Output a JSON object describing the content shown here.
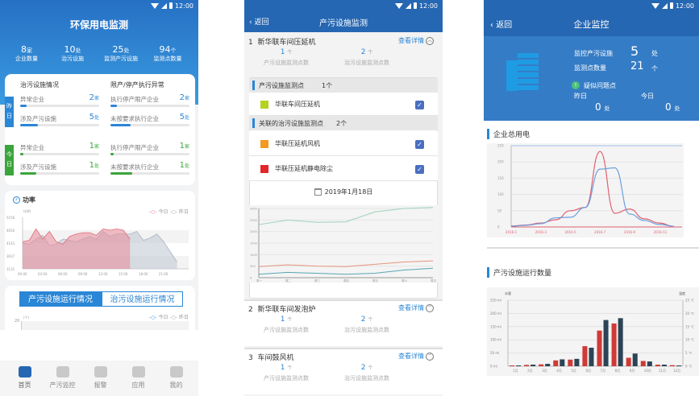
{
  "colors": {
    "primary": "#2a86d6",
    "header": "#2567b3",
    "green": "#3aa53a",
    "today": "#e06a7b",
    "yesterday": "#aab4c2"
  },
  "status_bar": {
    "time": "12:00"
  },
  "home": {
    "title": "环保用电监测",
    "stats": [
      {
        "value": "8",
        "unit": "家",
        "label": "企业数量"
      },
      {
        "value": "10",
        "unit": "处",
        "label": "治污设施"
      },
      {
        "value": "25",
        "unit": "处",
        "label": "监测产污设施"
      },
      {
        "value": "94",
        "unit": "个",
        "label": "监测点数量"
      }
    ],
    "left_header": "治污设施情况",
    "right_header": "限产/停产执行异常",
    "yesterday_label": "昨日",
    "today_label": "今日",
    "yesterday": [
      {
        "label": "异常企业",
        "value": "2",
        "unit": "家",
        "fill": 0.08
      },
      {
        "label": "涉及产污设施",
        "value": "5",
        "unit": "处",
        "fill": 0.22
      },
      {
        "label": "执行停产限产企业",
        "value": "2",
        "unit": "家",
        "fill": 0.08
      },
      {
        "label": "未按要求执行企业",
        "value": "5",
        "unit": "处",
        "fill": 0.25
      }
    ],
    "today": [
      {
        "label": "异常企业",
        "value": "1",
        "unit": "家",
        "fill": 0.04
      },
      {
        "label": "涉及产污设施",
        "value": "1",
        "unit": "处",
        "fill": 0.2
      },
      {
        "label": "执行停产限产企业",
        "value": "1",
        "unit": "家",
        "fill": 0.04
      },
      {
        "label": "未按要求执行企业",
        "value": "1",
        "unit": "处",
        "fill": 0.28
      }
    ],
    "power": {
      "title": "功率",
      "unit": "(kW)",
      "legend_today": "今日",
      "legend_yesterday": "昨日"
    },
    "tabs": [
      "产污设施运行情况",
      "治污设施运行情况"
    ],
    "tab_chart": {
      "unit": "(个)",
      "ymax_label": "20",
      "legend_today": "今日",
      "legend_yesterday": "昨日"
    },
    "nav": [
      "首页",
      "产污监控",
      "报警",
      "应用",
      "我的"
    ]
  },
  "facility": {
    "back": "返回",
    "title": "产污设施监测",
    "detail_label": "查看详情",
    "items": [
      {
        "index": "1",
        "name": "新华联车间压延机",
        "prod_count": "1",
        "treat_count": "2"
      },
      {
        "index": "2",
        "name": "新华联车间发泡炉",
        "prod_count": "1",
        "treat_count": "2"
      },
      {
        "index": "3",
        "name": "车间鼓风机",
        "prod_count": "1",
        "treat_count": "2"
      }
    ],
    "count_unit": "个",
    "prod_label": "产污设施监测点数",
    "treat_label": "治污设施监测点数",
    "section1": {
      "title": "产污设施监测点",
      "count": "1个"
    },
    "section1_rows": [
      {
        "name": "华联车间压延机",
        "color": "#b5d21f",
        "checked": true
      }
    ],
    "section2": {
      "title": "关联的治污设施监测点",
      "count": "2个"
    },
    "section2_rows": [
      {
        "name": "华联压延机风机",
        "color": "#f39a21",
        "checked": true
      },
      {
        "name": "华联压延机静电除尘",
        "color": "#e3262b",
        "checked": true
      }
    ],
    "date": "2019年1月18日"
  },
  "enterprise": {
    "back": "返回",
    "title": "企业监控",
    "monitored_label": "监控产污设施",
    "monitored_value": "5",
    "monitored_unit": "处",
    "points_label": "监测点数量",
    "points_value": "21",
    "points_unit": "个",
    "issue_label": "疑似问题点",
    "yesterday_label": "昨日",
    "today_label": "今日",
    "yesterday_value": "0",
    "today_value": "0",
    "issue_unit": "处",
    "section_power": "企业总用电",
    "section_bars": "产污设施运行数量"
  },
  "chart_data": [
    {
      "id": "power",
      "type": "area",
      "yticks": [
        3131,
        3637,
        4143,
        4650,
        5156
      ],
      "ylim": [
        3131,
        5156
      ],
      "xticks": [
        "00:00",
        "03:00",
        "06:00",
        "09:00",
        "12:00",
        "15:00",
        "18:00",
        "21:00"
      ],
      "x_hours": [
        0,
        1,
        2,
        3,
        4,
        5,
        6,
        7,
        8,
        9,
        10,
        11,
        12,
        13,
        14,
        15,
        16,
        17,
        18,
        19,
        20,
        21,
        22,
        23
      ],
      "series": [
        {
          "name": "今日",
          "values": [
            4200,
            4250,
            4700,
            4300,
            4600,
            4200,
            4100,
            4400,
            4500,
            4550,
            4550,
            4450,
            4700,
            4650,
            4700,
            4650,
            4300,
            null,
            null,
            null,
            null,
            null,
            null,
            null
          ]
        },
        {
          "name": "昨日",
          "values": [
            4150,
            4100,
            4300,
            4450,
            4050,
            4100,
            4300,
            4250,
            4200,
            4300,
            4400,
            4300,
            4600,
            4400,
            4500,
            4500,
            4500,
            4600,
            4250,
            4350,
            4500,
            4200,
            3800,
            3400
          ]
        }
      ]
    },
    {
      "id": "tab",
      "type": "line",
      "ylim": [
        0,
        20
      ],
      "categories": [],
      "series": []
    },
    {
      "id": "facility",
      "type": "line",
      "categories": [
        "周一",
        "周二",
        "周三",
        "周四",
        "周五",
        "周六",
        "周日"
      ],
      "ylim": [
        0,
        3000
      ],
      "yticks": [
        0,
        500,
        1000,
        1500,
        2000,
        2500,
        3000
      ],
      "series": [
        {
          "values": [
            2300,
            2500,
            2400,
            2420,
            2850,
            3000,
            3050
          ],
          "color": "#9fd1b8"
        },
        {
          "values": [
            480,
            560,
            500,
            480,
            580,
            680,
            730
          ],
          "color": "#e4947c"
        },
        {
          "values": [
            150,
            230,
            190,
            150,
            190,
            330,
            410
          ],
          "color": "#5aa5b5"
        }
      ]
    },
    {
      "id": "enterprise_power",
      "type": "line",
      "xticks": [
        "2016-1",
        "2016-3",
        "2016-5",
        "2016-7",
        "2016-9",
        "2016-11"
      ],
      "months": [
        1,
        2,
        3,
        4,
        5,
        6,
        7,
        8,
        9,
        10,
        11,
        12
      ],
      "ylim": [
        0,
        250
      ],
      "yticks": [
        0,
        50,
        100,
        150,
        200,
        250
      ],
      "series": [
        {
          "values": [
            3,
            6,
            12,
            22,
            50,
            60,
            232,
            42,
            55,
            25,
            12,
            2
          ],
          "color": "#e06070"
        },
        {
          "values": [
            2,
            5,
            10,
            28,
            30,
            60,
            178,
            182,
            40,
            20,
            8,
            2
          ],
          "color": "#6aa0e0"
        }
      ]
    },
    {
      "id": "facility_runs",
      "type": "bar",
      "categories": [
        "1月",
        "2月",
        "3月",
        "4月",
        "5月",
        "6月",
        "7月",
        "8月",
        "9月",
        "10月",
        "11月",
        "12月"
      ],
      "ylabel_left": "水量",
      "ylabel_right": "温度",
      "yticks_left": [
        "0 ml",
        "50 ml",
        "100 ml",
        "150 ml",
        "200 ml",
        "250 ml"
      ],
      "yticks_right": [
        "0 ℃",
        "5 ℃",
        "10 ℃",
        "15 ℃",
        "20 ℃",
        "25 ℃"
      ],
      "ylim_left": [
        0,
        250
      ],
      "ylim_right": [
        0,
        25
      ],
      "series": [
        {
          "axis": "left",
          "values": [
            3,
            5,
            7,
            22,
            25,
            76,
            135,
            162,
            32,
            20,
            6,
            4
          ],
          "color": "#d03a36"
        },
        {
          "axis": "right",
          "values": [
            0.3,
            0.6,
            0.9,
            2.6,
            2.8,
            7,
            17.5,
            18.2,
            4.8,
            1.8,
            0.6,
            0.3
          ],
          "color": "#2c4455"
        }
      ]
    }
  ]
}
